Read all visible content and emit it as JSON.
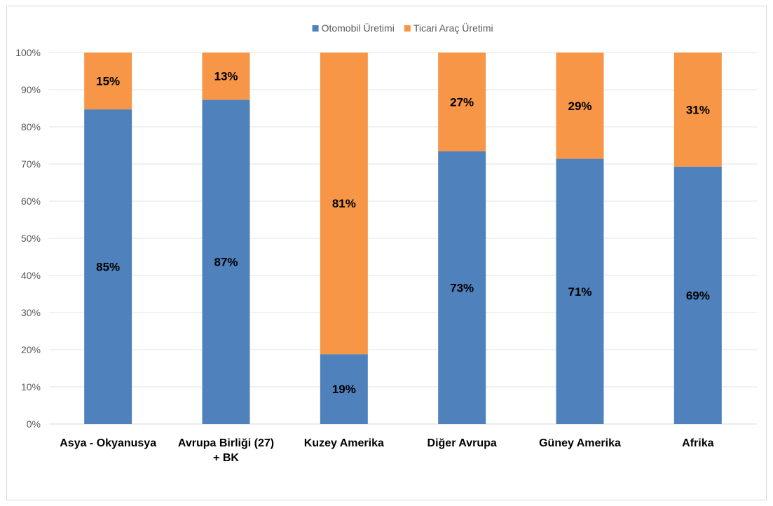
{
  "chart_data": {
    "type": "bar",
    "stacked": true,
    "percent": true,
    "categories": [
      [
        "Asya - Okyanusya"
      ],
      [
        "Avrupa Birliği (27)",
        "+ BK"
      ],
      [
        "Kuzey Amerika"
      ],
      [
        "Diğer Avrupa"
      ],
      [
        "Güney Amerika"
      ],
      [
        "Afrika"
      ]
    ],
    "series": [
      {
        "name": "Otomobil Üretimi",
        "color": "#4f81bd",
        "values": [
          84.7,
          87.3,
          18.8,
          73.4,
          71.4,
          69.3
        ],
        "labels": [
          "85%",
          "87%",
          "19%",
          "73%",
          "71%",
          "69%"
        ]
      },
      {
        "name": "Ticari Araç Üretimi",
        "color": "#f79646",
        "values": [
          15.3,
          12.7,
          81.2,
          26.6,
          28.6,
          30.7
        ],
        "labels": [
          "15%",
          "13%",
          "81%",
          "27%",
          "29%",
          "31%"
        ]
      }
    ],
    "yticks": [
      "0%",
      "10%",
      "20%",
      "30%",
      "40%",
      "50%",
      "60%",
      "70%",
      "80%",
      "90%",
      "100%"
    ],
    "ylim": [
      0,
      100
    ],
    "grid": true,
    "legend": "top-center"
  }
}
